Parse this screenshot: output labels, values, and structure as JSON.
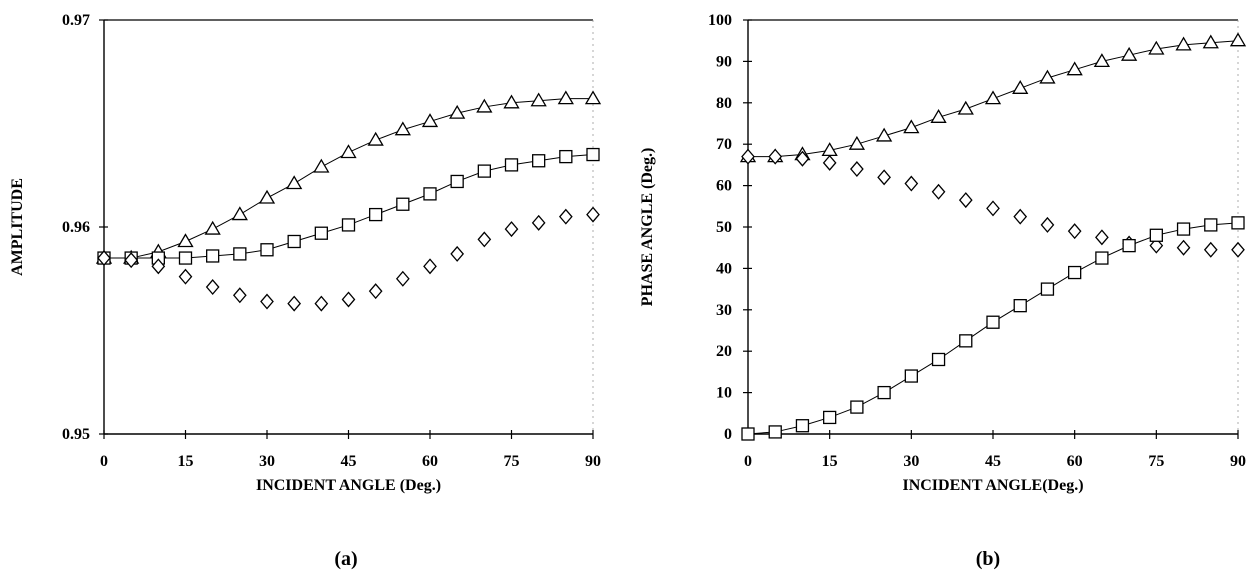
{
  "chart_data": [
    {
      "type": "scatter",
      "panel_label": "(a)",
      "xlabel": "INCIDENT ANGLE (Deg.)",
      "ylabel": "AMPLITUDE",
      "xlim": [
        0,
        90
      ],
      "ylim": [
        0.95,
        0.97
      ],
      "xticks": [
        0,
        15,
        30,
        45,
        60,
        75,
        90
      ],
      "xtick_labels": [
        "0",
        "15",
        "30",
        "45",
        "60",
        "75",
        "90"
      ],
      "yticks": [
        0.95,
        0.96,
        0.97
      ],
      "ytick_labels": [
        "0.95",
        "0.96",
        "0.97"
      ],
      "grid": false,
      "x": [
        0,
        5,
        10,
        15,
        20,
        25,
        30,
        35,
        40,
        45,
        50,
        55,
        60,
        65,
        70,
        75,
        80,
        85,
        90
      ],
      "series": [
        {
          "marker": "triangle",
          "line": true,
          "values": [
            0.9585,
            0.9585,
            0.9588,
            0.9593,
            0.9599,
            0.9606,
            0.9614,
            0.9621,
            0.9629,
            0.9636,
            0.9642,
            0.9647,
            0.9651,
            0.9655,
            0.9658,
            0.966,
            0.9661,
            0.9662,
            0.9662
          ]
        },
        {
          "marker": "square",
          "line": true,
          "values": [
            0.9585,
            0.9585,
            0.9585,
            0.9585,
            0.9586,
            0.9587,
            0.9589,
            0.9593,
            0.9597,
            0.9601,
            0.9606,
            0.9611,
            0.9616,
            0.9622,
            0.9627,
            0.963,
            0.9632,
            0.9634,
            0.9635
          ]
        },
        {
          "marker": "diamond",
          "line": false,
          "values": [
            0.9585,
            0.9584,
            0.9581,
            0.9576,
            0.9571,
            0.9567,
            0.9564,
            0.9563,
            0.9563,
            0.9565,
            0.9569,
            0.9575,
            0.9581,
            0.9587,
            0.9594,
            0.9599,
            0.9602,
            0.9605,
            0.9606
          ]
        }
      ]
    },
    {
      "type": "scatter",
      "panel_label": "(b)",
      "xlabel": "INCIDENT ANGLE(Deg.)",
      "ylabel": "PHASE ANGLE (Deg.)",
      "xlim": [
        0,
        90
      ],
      "ylim": [
        0,
        100
      ],
      "xticks": [
        0,
        15,
        30,
        45,
        60,
        75,
        90
      ],
      "xtick_labels": [
        "0",
        "15",
        "30",
        "45",
        "60",
        "75",
        "90"
      ],
      "yticks": [
        0,
        10,
        20,
        30,
        40,
        50,
        60,
        70,
        80,
        90,
        100
      ],
      "ytick_labels": [
        "0",
        "10",
        "20",
        "30",
        "40",
        "50",
        "60",
        "70",
        "80",
        "90",
        "100"
      ],
      "grid": false,
      "x": [
        0,
        5,
        10,
        15,
        20,
        25,
        30,
        35,
        40,
        45,
        50,
        55,
        60,
        65,
        70,
        75,
        80,
        85,
        90
      ],
      "series": [
        {
          "marker": "triangle",
          "line": true,
          "values": [
            67,
            67,
            67.5,
            68.5,
            70,
            72,
            74,
            76.5,
            78.5,
            81,
            83.5,
            86,
            88,
            90,
            91.5,
            93,
            94,
            94.5,
            95
          ]
        },
        {
          "marker": "diamond",
          "line": false,
          "values": [
            67,
            67,
            66.5,
            65.5,
            64,
            62,
            60.5,
            58.5,
            56.5,
            54.5,
            52.5,
            50.5,
            49,
            47.5,
            46,
            45.5,
            45,
            44.5,
            44.5
          ]
        },
        {
          "marker": "square",
          "line": true,
          "values": [
            0,
            0.5,
            2,
            4,
            6.5,
            10,
            14,
            18,
            22.5,
            27,
            31,
            35,
            39,
            42.5,
            45.5,
            48,
            49.5,
            50.5,
            51
          ]
        }
      ]
    }
  ]
}
